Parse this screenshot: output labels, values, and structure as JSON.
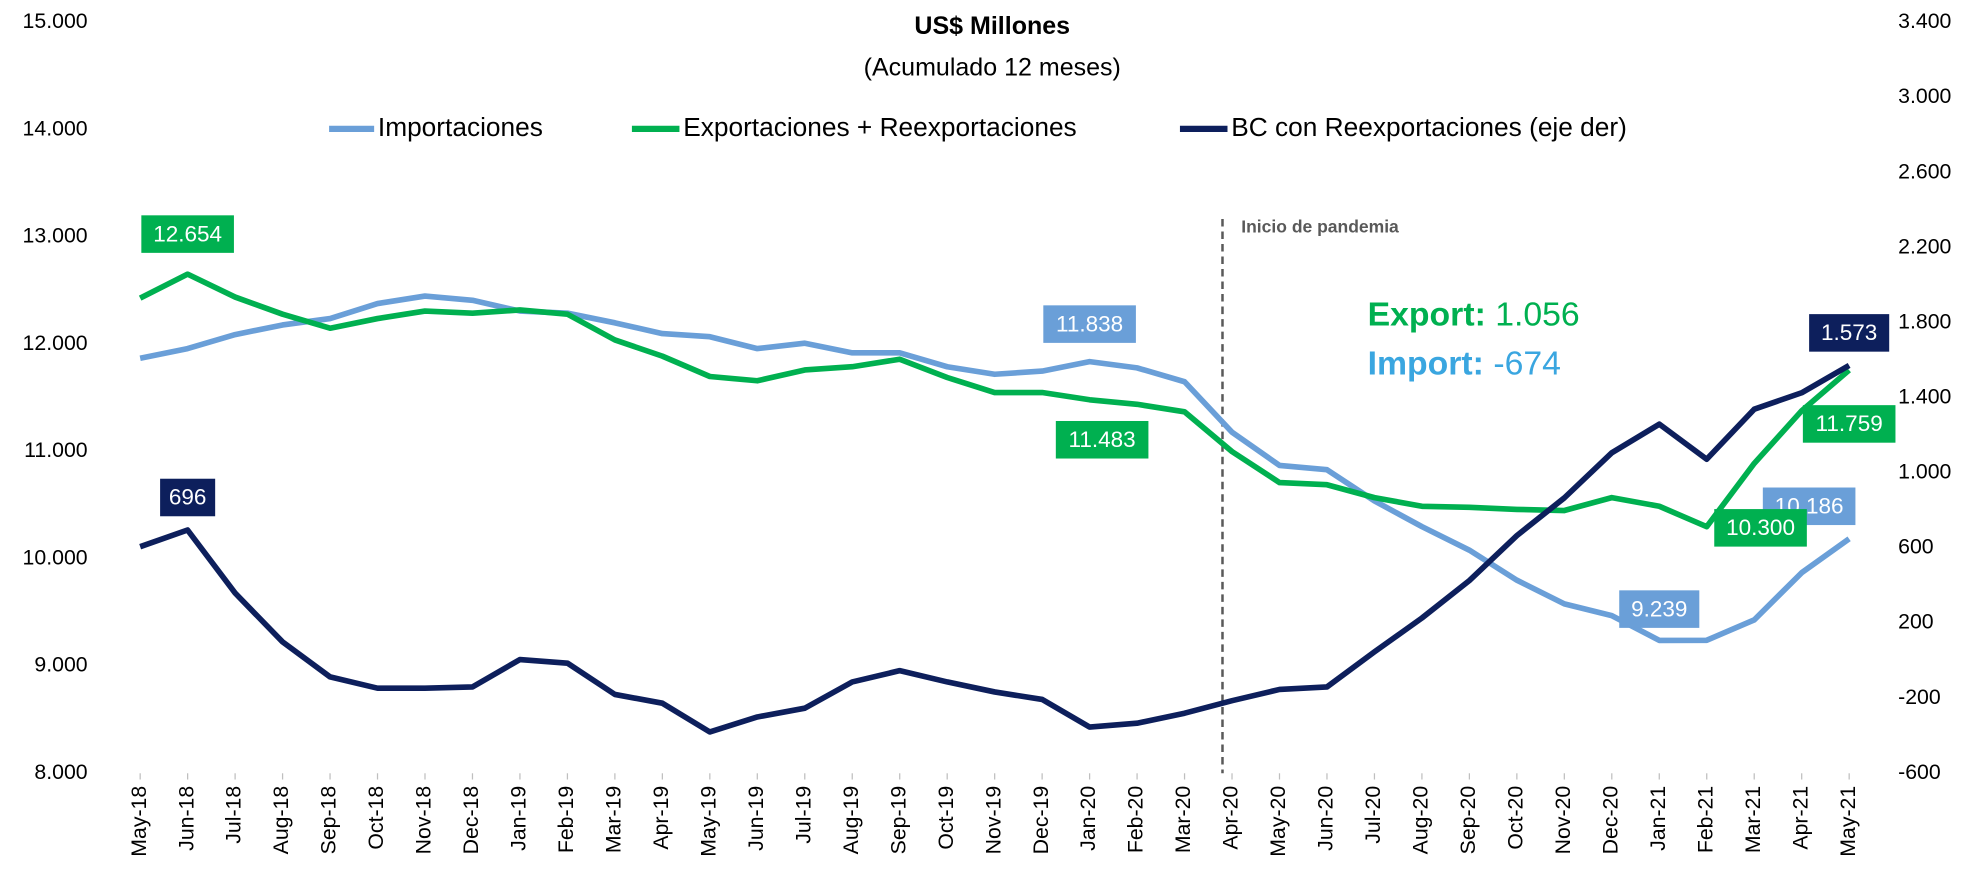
{
  "chart_data": {
    "type": "line",
    "title": "US$ Millones",
    "subtitle": "(Acumulado 12 meses)",
    "categories": [
      "May-18",
      "Jun-18",
      "Jul-18",
      "Aug-18",
      "Sep-18",
      "Oct-18",
      "Nov-18",
      "Dec-18",
      "Jan-19",
      "Feb-19",
      "Mar-19",
      "Apr-19",
      "May-19",
      "Jun-19",
      "Jul-19",
      "Aug-19",
      "Sep-19",
      "Oct-19",
      "Nov-19",
      "Dec-19",
      "Jan-20",
      "Feb-20",
      "Mar-20",
      "Apr-20",
      "May-20",
      "Jun-20",
      "Jul-20",
      "Aug-20",
      "Sep-20",
      "Oct-20",
      "Nov-20",
      "Dec-20",
      "Jan-21",
      "Feb-21",
      "Mar-21",
      "Apr-21",
      "May-21"
    ],
    "series": [
      {
        "name": "Importaciones",
        "color": "#6a9fd8",
        "values": [
          11870,
          11960,
          12090,
          12180,
          12240,
          12380,
          12450,
          12410,
          12310,
          12290,
          12200,
          12100,
          12070,
          11960,
          12010,
          11920,
          11920,
          11790,
          11720,
          11750,
          11838,
          11780,
          11650,
          11180,
          10870,
          10830,
          10540,
          10300,
          10080,
          9800,
          9580,
          9470,
          9239,
          9240,
          9430,
          9870,
          10186
        ],
        "value_labels": [
          null,
          null,
          null,
          null,
          null,
          null,
          null,
          null,
          null,
          null,
          null,
          null,
          null,
          null,
          null,
          null,
          null,
          null,
          null,
          null,
          "11.838",
          null,
          null,
          null,
          null,
          null,
          null,
          null,
          null,
          null,
          null,
          null,
          "9.239",
          null,
          null,
          null,
          "10.186"
        ]
      },
      {
        "name": "Exportaciones + Reexportaciones",
        "color": "#00b050",
        "values": [
          12430,
          12654,
          12440,
          12280,
          12150,
          12240,
          12310,
          12290,
          12320,
          12280,
          12040,
          11890,
          11700,
          11660,
          11760,
          11790,
          11860,
          11690,
          11550,
          11550,
          11483,
          11440,
          11370,
          11000,
          10710,
          10690,
          10570,
          10490,
          10480,
          10460,
          10450,
          10570,
          10490,
          10300,
          10890,
          11380,
          11759
        ],
        "value_labels": [
          null,
          "12.654",
          null,
          null,
          null,
          null,
          null,
          null,
          null,
          null,
          null,
          null,
          null,
          null,
          null,
          null,
          null,
          null,
          null,
          null,
          "11.483",
          null,
          null,
          null,
          null,
          null,
          null,
          null,
          null,
          null,
          null,
          null,
          null,
          "10.300",
          null,
          null,
          "11.759"
        ]
      },
      {
        "name": "BC con Reexportaciones (eje der)",
        "color": "#0d1f5c",
        "axis": "y2",
        "values": [
          607,
          696,
          360,
          100,
          -87,
          -147,
          -147,
          -140,
          6,
          -13,
          -180,
          -227,
          -380,
          -300,
          -253,
          -113,
          -53,
          -113,
          -167,
          -207,
          -354,
          -333,
          -280,
          -213,
          -153,
          -140,
          47,
          227,
          427,
          667,
          867,
          1107,
          1260,
          1073,
          1340,
          1427,
          1573
        ],
        "value_labels": [
          null,
          "696",
          null,
          null,
          null,
          null,
          null,
          null,
          null,
          null,
          null,
          null,
          null,
          null,
          null,
          null,
          null,
          null,
          null,
          null,
          null,
          null,
          null,
          null,
          null,
          null,
          null,
          null,
          null,
          null,
          null,
          null,
          null,
          null,
          null,
          null,
          "1.573"
        ]
      }
    ],
    "ylim": [
      8000,
      15000
    ],
    "yticks": [
      {
        "value": 8000,
        "label": "8.000"
      },
      {
        "value": 9000,
        "label": "9.000"
      },
      {
        "value": 10000,
        "label": "10.000"
      },
      {
        "value": 11000,
        "label": "11.000"
      },
      {
        "value": 12000,
        "label": "12.000"
      },
      {
        "value": 13000,
        "label": "13.000"
      },
      {
        "value": 14000,
        "label": "14.000"
      },
      {
        "value": 15000,
        "label": "15.000"
      }
    ],
    "y2lim": [
      -600,
      3400
    ],
    "y2ticks": [
      -600,
      -200,
      200,
      600,
      {
        "value": 1000,
        "label": "1.000"
      },
      {
        "value": 1400,
        "label": "1.400"
      },
      {
        "value": 1800,
        "label": "1.800"
      },
      {
        "value": 2200,
        "label": "2.200"
      },
      {
        "value": 2600,
        "label": "2.600"
      },
      {
        "value": 3000,
        "label": "3.000"
      },
      {
        "value": 3400,
        "label": "3.400"
      }
    ],
    "grid": false,
    "annotations": [
      "Inicio de pandemia",
      "Export:",
      "1.056",
      "Import:",
      "-674"
    ]
  }
}
